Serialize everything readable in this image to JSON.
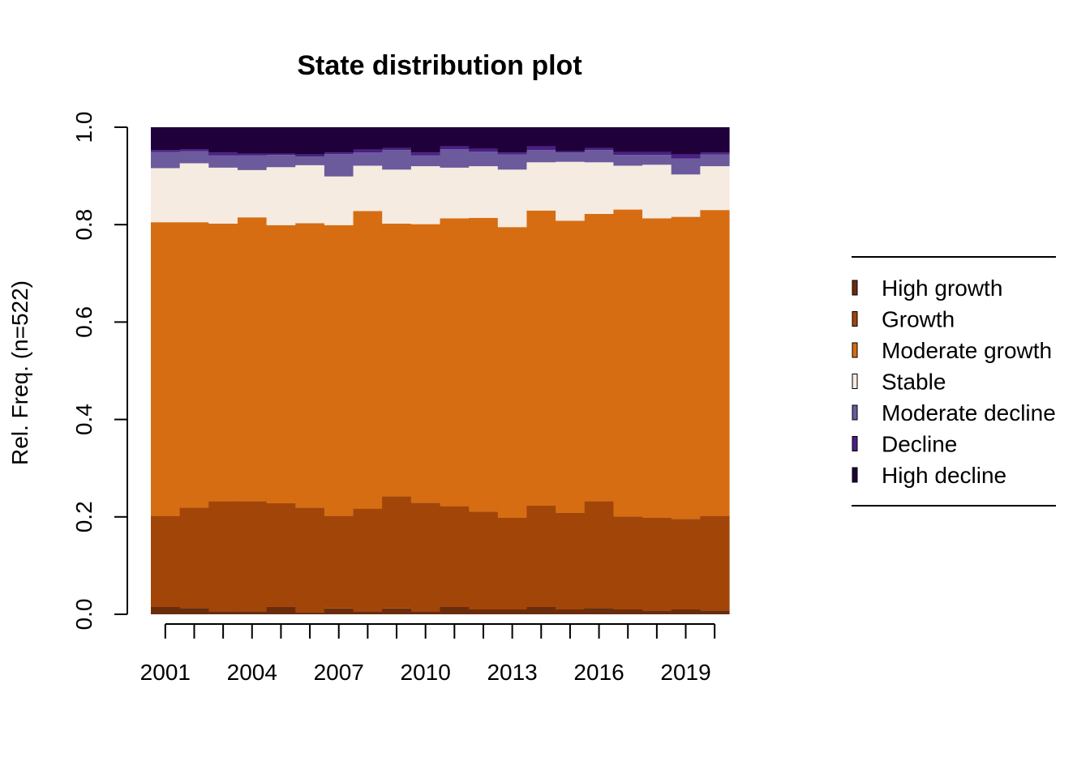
{
  "chart_data": {
    "type": "area",
    "title": "State distribution plot",
    "xlabel": "",
    "ylabel": "Rel. Freq. (n=522)",
    "ylim": [
      0,
      1
    ],
    "x_tick_labels": [
      "2001",
      "2004",
      "2007",
      "2010",
      "2013",
      "2016",
      "2019"
    ],
    "y_tick_labels": [
      "0.0",
      "0.2",
      "0.4",
      "0.6",
      "0.8",
      "1.0"
    ],
    "legend_position": "right",
    "x": [
      2001,
      2002,
      2003,
      2004,
      2005,
      2006,
      2007,
      2008,
      2009,
      2010,
      2011,
      2012,
      2013,
      2014,
      2015,
      2016,
      2017,
      2018,
      2019,
      2020
    ],
    "series": [
      {
        "name": "High growth",
        "color": "#6B2C0C",
        "values": [
          0.015,
          0.013,
          0.006,
          0.006,
          0.015,
          0.004,
          0.012,
          0.006,
          0.012,
          0.006,
          0.015,
          0.01,
          0.01,
          0.015,
          0.01,
          0.013,
          0.01,
          0.008,
          0.01,
          0.008
        ]
      },
      {
        "name": "Growth",
        "color": "#A24509",
        "values": [
          0.187,
          0.206,
          0.226,
          0.226,
          0.213,
          0.215,
          0.19,
          0.211,
          0.23,
          0.223,
          0.207,
          0.201,
          0.188,
          0.208,
          0.198,
          0.219,
          0.191,
          0.19,
          0.186,
          0.194
        ]
      },
      {
        "name": "Moderate growth",
        "color": "#D66D12",
        "values": [
          0.603,
          0.586,
          0.57,
          0.583,
          0.571,
          0.584,
          0.597,
          0.611,
          0.56,
          0.572,
          0.591,
          0.603,
          0.597,
          0.606,
          0.6,
          0.59,
          0.63,
          0.615,
          0.62,
          0.628
        ]
      },
      {
        "name": "Stable",
        "color": "#F6EBE1",
        "values": [
          0.111,
          0.121,
          0.115,
          0.097,
          0.119,
          0.119,
          0.1,
          0.093,
          0.111,
          0.119,
          0.104,
          0.106,
          0.118,
          0.099,
          0.121,
          0.106,
          0.09,
          0.11,
          0.087,
          0.09
        ]
      },
      {
        "name": "Moderate decline",
        "color": "#6B5B9C",
        "values": [
          0.033,
          0.025,
          0.025,
          0.03,
          0.025,
          0.018,
          0.046,
          0.027,
          0.04,
          0.022,
          0.038,
          0.03,
          0.031,
          0.025,
          0.019,
          0.025,
          0.022,
          0.02,
          0.033,
          0.024
        ]
      },
      {
        "name": "Decline",
        "color": "#4B1E86",
        "values": [
          0.004,
          0.004,
          0.006,
          0.004,
          0.003,
          0.004,
          0.003,
          0.006,
          0.004,
          0.006,
          0.006,
          0.006,
          0.004,
          0.008,
          0.003,
          0.004,
          0.006,
          0.006,
          0.008,
          0.004
        ]
      },
      {
        "name": "High decline",
        "color": "#1F003A",
        "values": [
          0.047,
          0.045,
          0.052,
          0.054,
          0.054,
          0.056,
          0.052,
          0.046,
          0.043,
          0.052,
          0.039,
          0.044,
          0.052,
          0.039,
          0.049,
          0.043,
          0.051,
          0.051,
          0.056,
          0.052
        ]
      }
    ]
  }
}
